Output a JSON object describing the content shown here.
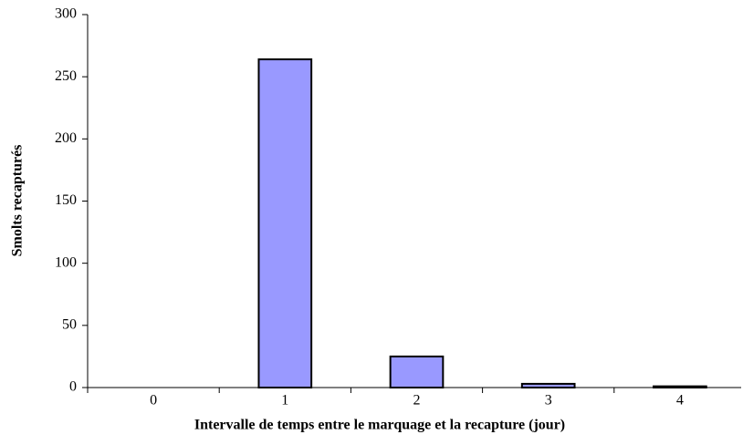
{
  "chart_data": {
    "type": "bar",
    "x_label": "Intervalle de temps entre le marquage et la recapture (jour)",
    "y_label": "Smolts recapturés",
    "categories": [
      "0",
      "1",
      "2",
      "3",
      "4"
    ],
    "values": [
      0,
      264,
      25,
      3,
      1
    ],
    "color": "#9999ff",
    "ylim": [
      0,
      300
    ],
    "yticks": [
      0,
      50,
      100,
      150,
      200,
      250,
      300
    ],
    "grid": false
  }
}
